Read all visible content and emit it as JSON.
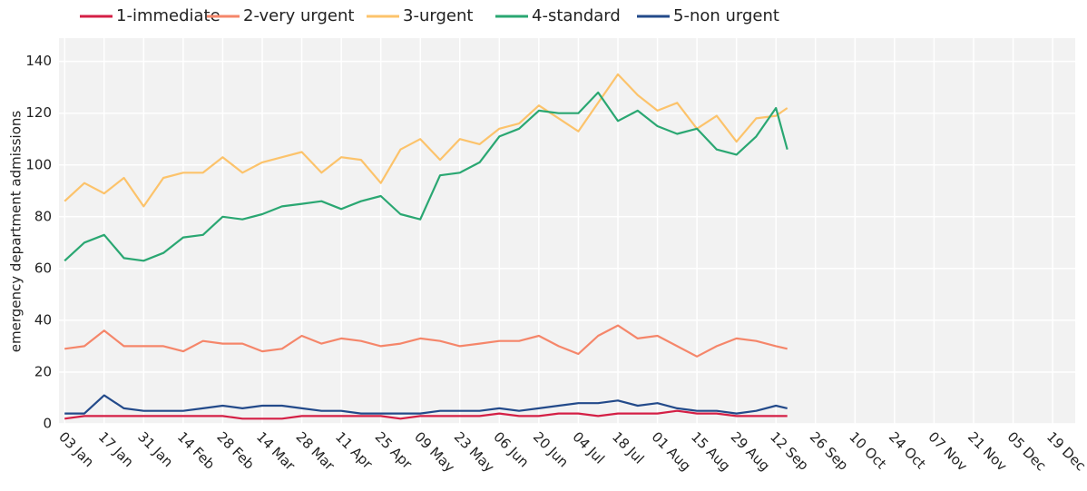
{
  "chart_data": {
    "type": "line",
    "y_label": "emergency department admissions",
    "x": [
      "03 Jan",
      "10 Jan",
      "17 Jan",
      "24 Jan",
      "31 Jan",
      "07 Feb",
      "14 Feb",
      "21 Feb",
      "28 Feb",
      "07 Mar",
      "14 Mar",
      "21 Mar",
      "28 Mar",
      "04 Apr",
      "11 Apr",
      "18 Apr",
      "25 Apr",
      "02 May",
      "09 May",
      "16 May",
      "23 May",
      "30 May",
      "06 Jun",
      "13 Jun",
      "20 Jun",
      "27 Jun",
      "04 Jul",
      "11 Jul",
      "18 Jul",
      "25 Jul",
      "01 Aug",
      "08 Aug",
      "15 Aug",
      "22 Aug",
      "29 Aug",
      "05 Sep",
      "12 Sep",
      "16 Sep"
    ],
    "series": [
      {
        "name": "1-immediate",
        "color": "#d41f45",
        "values": [
          2,
          3,
          3,
          3,
          3,
          3,
          3,
          3,
          3,
          2,
          2,
          2,
          3,
          3,
          3,
          3,
          3,
          2,
          3,
          3,
          3,
          3,
          4,
          3,
          3,
          4,
          4,
          3,
          4,
          4,
          4,
          5,
          4,
          4,
          3,
          3,
          3,
          3
        ]
      },
      {
        "name": "2-very urgent",
        "color": "#f5866a",
        "values": [
          29,
          30,
          36,
          30,
          30,
          30,
          28,
          32,
          31,
          31,
          28,
          29,
          34,
          31,
          33,
          32,
          30,
          31,
          33,
          32,
          30,
          31,
          32,
          32,
          34,
          30,
          27,
          34,
          38,
          33,
          34,
          30,
          26,
          30,
          33,
          32,
          30,
          29
        ]
      },
      {
        "name": "3-urgent",
        "color": "#fcc36b",
        "values": [
          86,
          93,
          89,
          95,
          84,
          95,
          97,
          97,
          103,
          97,
          101,
          103,
          105,
          97,
          103,
          102,
          93,
          106,
          110,
          102,
          110,
          108,
          114,
          116,
          123,
          118,
          113,
          124,
          135,
          127,
          121,
          124,
          114,
          119,
          109,
          118,
          119,
          122
        ]
      },
      {
        "name": "4-standard",
        "color": "#2aa772",
        "values": [
          63,
          70,
          73,
          64,
          63,
          66,
          72,
          73,
          80,
          79,
          81,
          84,
          85,
          86,
          83,
          86,
          88,
          81,
          79,
          96,
          97,
          101,
          111,
          114,
          121,
          120,
          120,
          128,
          117,
          121,
          115,
          112,
          114,
          106,
          104,
          111,
          122,
          106
        ]
      },
      {
        "name": "5-non urgent",
        "color": "#234a8a",
        "values": [
          4,
          4,
          11,
          6,
          5,
          5,
          5,
          6,
          7,
          6,
          7,
          7,
          6,
          5,
          5,
          4,
          4,
          4,
          4,
          5,
          5,
          5,
          6,
          5,
          6,
          7,
          8,
          8,
          9,
          7,
          8,
          6,
          5,
          5,
          4,
          5,
          7,
          6
        ]
      }
    ],
    "xlim": [
      "01 Jan",
      "27 Dec"
    ],
    "xticks": [
      "03 Jan",
      "17 Jan",
      "31 Jan",
      "14 Feb",
      "28 Feb",
      "14 Mar",
      "28 Mar",
      "11 Apr",
      "25 Apr",
      "09 May",
      "23 May",
      "06 Jun",
      "20 Jun",
      "04 Jul",
      "18 Jul",
      "01 Aug",
      "15 Aug",
      "29 Aug",
      "12 Sep",
      "26 Sep",
      "10 Oct",
      "24 Oct",
      "07 Nov",
      "21 Nov",
      "05 Dec",
      "19 Dec"
    ],
    "ylim": [
      0,
      149
    ],
    "yticks": [
      0,
      20,
      40,
      60,
      80,
      100,
      120,
      140
    ],
    "grid": true,
    "legend": "top"
  }
}
